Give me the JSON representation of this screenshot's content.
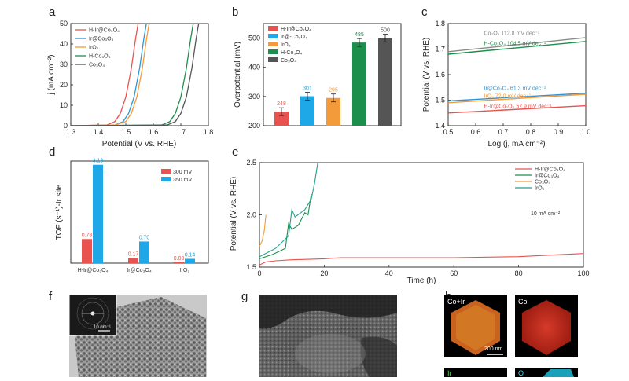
{
  "panels": {
    "a": "a",
    "b": "b",
    "c": "c",
    "d": "d",
    "e": "e",
    "f": "f",
    "g": "g",
    "h": "h"
  },
  "colors": {
    "red": "#e8534f",
    "blue": "#2c95d6",
    "orange": "#f39a3b",
    "green": "#1b8f4b",
    "gray": "#555555",
    "teal": "#25a08c",
    "barred": "#e8534f",
    "barblue": "#1ea8e8"
  },
  "chart_data": [
    {
      "panel": "a",
      "type": "line",
      "xlabel": "Potential (V vs. RHE)",
      "ylabel": "j (mA cm⁻²)",
      "xlim": [
        1.3,
        1.8
      ],
      "ylim": [
        0,
        50
      ],
      "xticks": [
        "1.3",
        "1.4",
        "1.5",
        "1.6",
        "1.7",
        "1.8"
      ],
      "yticks": [
        "0",
        "10",
        "20",
        "30",
        "40",
        "50"
      ],
      "legend": [
        "H-Ir@Co₃O₄",
        "Ir@Co₃O₄",
        "IrO₂",
        "H-Co₃O₄",
        "Co₃O₄"
      ],
      "series": [
        {
          "name": "H-Ir@Co₃O₄",
          "x": [
            1.3,
            1.43,
            1.46,
            1.48,
            1.5,
            1.52,
            1.535,
            1.545
          ],
          "y": [
            0,
            0.3,
            2,
            6,
            14,
            28,
            42,
            50
          ]
        },
        {
          "name": "Ir@Co₃O₄",
          "x": [
            1.3,
            1.46,
            1.49,
            1.51,
            1.53,
            1.55,
            1.565,
            1.575
          ],
          "y": [
            0,
            0.3,
            2,
            6,
            14,
            28,
            42,
            50
          ]
        },
        {
          "name": "IrO₂",
          "x": [
            1.3,
            1.46,
            1.5,
            1.52,
            1.54,
            1.56,
            1.575,
            1.585
          ],
          "y": [
            0,
            0.3,
            2,
            6,
            14,
            28,
            42,
            50
          ]
        },
        {
          "name": "H-Co₃O₄",
          "x": [
            1.3,
            1.63,
            1.66,
            1.68,
            1.7,
            1.72,
            1.735,
            1.745
          ],
          "y": [
            0,
            0.3,
            2,
            6,
            14,
            28,
            42,
            50
          ]
        },
        {
          "name": "Co₃O₄",
          "x": [
            1.3,
            1.65,
            1.68,
            1.7,
            1.72,
            1.74,
            1.755,
            1.765
          ],
          "y": [
            0,
            0.3,
            2,
            6,
            14,
            28,
            42,
            50
          ]
        }
      ]
    },
    {
      "panel": "b",
      "type": "bar",
      "ylabel": "Overpotential (mV)",
      "ylim": [
        200,
        550
      ],
      "yticks": [
        "200",
        "300",
        "400",
        "500"
      ],
      "legend": [
        "H-Ir@Co₃O₄",
        "Ir@-Co₃O₄",
        "IrO₂",
        "H-Co₃O₄",
        "Co₃O₄"
      ],
      "categories": [
        "H-Ir@Co₃O₄",
        "Ir@Co₃O₄",
        "IrO₂",
        "H-Co₃O₄",
        "Co₃O₄"
      ],
      "values": [
        248,
        301,
        295,
        485,
        500
      ],
      "value_labels": [
        "248",
        "301",
        "295",
        "485",
        "500"
      ]
    },
    {
      "panel": "c",
      "type": "line",
      "xlabel": "Log (j, mA cm⁻²)",
      "ylabel": "Potential (V vs. RHE)",
      "xlim": [
        0.5,
        1.0
      ],
      "ylim": [
        1.4,
        1.8
      ],
      "xticks": [
        "0.5",
        "0.6",
        "0.7",
        "0.8",
        "0.9",
        "1.0"
      ],
      "yticks": [
        "1.4",
        "1.5",
        "1.6",
        "1.7",
        "1.8"
      ],
      "series": [
        {
          "name": "Co₃O₄",
          "label": "Co₃O₄ 112.8 mV dec⁻¹",
          "x": [
            0.5,
            1.0
          ],
          "y": [
            1.69,
            1.745
          ]
        },
        {
          "name": "H-Co₃O₄",
          "label": "H-Co₃O₄ 104.5 mV dec⁻¹",
          "x": [
            0.5,
            1.0
          ],
          "y": [
            1.68,
            1.73
          ]
        },
        {
          "name": "Ir@Co₃O₄",
          "label": "Ir@Co₃O₄ 61.3 mV dec⁻¹",
          "x": [
            0.5,
            1.0
          ],
          "y": [
            1.497,
            1.527
          ]
        },
        {
          "name": "IrO₂",
          "label": "IrO₂ 72.0 mV dec⁻¹",
          "x": [
            0.5,
            1.0
          ],
          "y": [
            1.49,
            1.523
          ]
        },
        {
          "name": "H-Ir@Co₃O₄",
          "label": "H-Ir@Co₃O₄ 57.9 mV dec⁻¹",
          "x": [
            0.5,
            1.0
          ],
          "y": [
            1.45,
            1.478
          ]
        }
      ]
    },
    {
      "panel": "d",
      "type": "bar",
      "ylabel": "TOF (s⁻¹)-Ir site",
      "categories": [
        "H-Ir@Co₃O₄",
        "Ir@Co₃O₄",
        "IrO₂"
      ],
      "series": [
        {
          "name": "300 mV",
          "values": [
            0.78,
            0.17,
            0.03
          ],
          "labels": [
            "0.78",
            "0.17",
            "0.03"
          ]
        },
        {
          "name": "350 mV",
          "values": [
            3.18,
            0.7,
            0.14
          ],
          "labels": [
            "3.18",
            "0.70",
            "0.14"
          ]
        }
      ],
      "ylim": [
        0,
        3.3
      ]
    },
    {
      "panel": "e",
      "type": "line",
      "xlabel": "Time (h)",
      "ylabel": "Potential (V vs. RHE)",
      "xlim": [
        0,
        100
      ],
      "ylim": [
        1.5,
        2.5
      ],
      "xticks": [
        "0",
        "20",
        "40",
        "60",
        "80",
        "100"
      ],
      "yticks": [
        "1.5",
        "2.0",
        "2.5"
      ],
      "yticks_minor": [
        "1.5",
        "2.0",
        "2.5"
      ],
      "annotation": "10 mA cm⁻²",
      "legend": [
        "H-Ir@Co₃O₄",
        "Ir@Co₃O₄",
        "Co₃O₄",
        "IrO₂"
      ],
      "series": [
        {
          "name": "H-Ir@Co₃O₄",
          "x": [
            0,
            2,
            5,
            10,
            20,
            25,
            40,
            60,
            80,
            100
          ],
          "y": [
            1.52,
            1.55,
            1.56,
            1.57,
            1.58,
            1.59,
            1.59,
            1.59,
            1.6,
            1.63
          ]
        },
        {
          "name": "Ir@Co₃O₄",
          "x": [
            0,
            4,
            8,
            9,
            10,
            12,
            14,
            15,
            16
          ],
          "y": [
            1.58,
            1.62,
            1.68,
            1.92,
            1.86,
            1.9,
            2.02,
            2.0,
            2.2
          ]
        },
        {
          "name": "Co₃O₄",
          "x": [
            0,
            0.8,
            1.5,
            2.0
          ],
          "y": [
            1.7,
            1.75,
            1.85,
            2.0
          ]
        },
        {
          "name": "IrO₂",
          "x": [
            0,
            5,
            9,
            10,
            11,
            14,
            16,
            17,
            18
          ],
          "y": [
            1.6,
            1.68,
            1.8,
            2.05,
            1.98,
            2.05,
            2.15,
            2.3,
            2.5
          ]
        }
      ]
    }
  ],
  "micro": {
    "f_scale": "10 nm⁻¹",
    "h_tiles": [
      "Co+Ir",
      "Co",
      "Ir",
      "O"
    ],
    "h_scale": "200 nm"
  }
}
